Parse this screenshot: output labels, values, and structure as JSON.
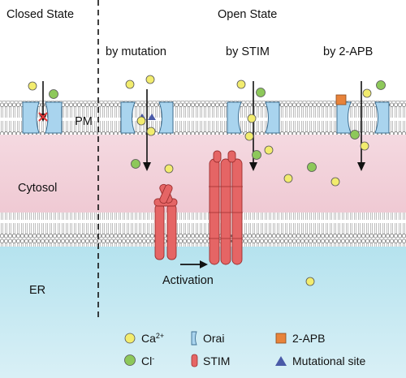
{
  "states": {
    "closed": "Closed State",
    "open": "Open State",
    "mutation": "by mutation",
    "stim": "by STIM",
    "apb": "by 2-APB"
  },
  "regions": {
    "pm": "PM",
    "cytosol": "Cytosol",
    "er": "ER"
  },
  "activation": "Activation",
  "legend": {
    "ca_base": "Ca",
    "ca_sup": "2+",
    "cl_base": "Cl",
    "cl_sup": "-",
    "orai": "Orai",
    "stim": "STIM",
    "apb": "2-APB",
    "mut": "Mutational site"
  },
  "colors": {
    "ca": "#f2ec6e",
    "cl": "#8dc85a",
    "orai": "#a9d4ee",
    "stim": "#e56565",
    "apb": "#e8833a",
    "mut": "#4a5aa8",
    "cytosol": "#f2d2da",
    "er": "#a8dcea"
  }
}
